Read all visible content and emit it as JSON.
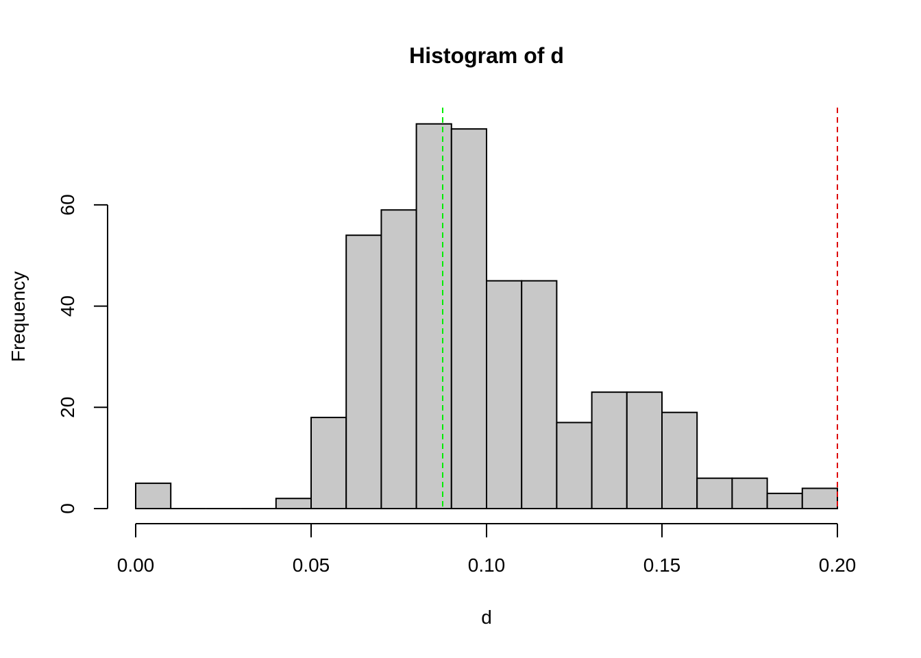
{
  "chart_data": {
    "type": "bar",
    "title": "Histogram of d",
    "xlabel": "d",
    "ylabel": "Frequency",
    "bin_edges": [
      0.0,
      0.01,
      0.02,
      0.03,
      0.04,
      0.05,
      0.06,
      0.07,
      0.08,
      0.09,
      0.1,
      0.11,
      0.12,
      0.13,
      0.14,
      0.15,
      0.16,
      0.17,
      0.18,
      0.19,
      0.2
    ],
    "values": [
      5,
      0,
      0,
      0,
      2,
      18,
      54,
      59,
      76,
      75,
      45,
      45,
      17,
      23,
      23,
      19,
      6,
      6,
      3,
      4
    ],
    "xlim": [
      0.0,
      0.2
    ],
    "ylim": [
      0,
      76
    ],
    "x_ticks": [
      0.0,
      0.05,
      0.1,
      0.15,
      0.2
    ],
    "x_tick_labels": [
      "0.00",
      "0.05",
      "0.10",
      "0.15",
      "0.20"
    ],
    "y_ticks": [
      0,
      20,
      40,
      60
    ],
    "y_tick_labels": [
      "0",
      "20",
      "40",
      "60"
    ],
    "vlines": [
      {
        "x": 0.0875,
        "color": "#00ee00",
        "style": "dashed"
      },
      {
        "x": 0.2,
        "color": "#dd0000",
        "style": "dashed"
      }
    ],
    "bar_fill": "#c8c8c8",
    "bar_stroke": "#000000",
    "grid": false
  }
}
